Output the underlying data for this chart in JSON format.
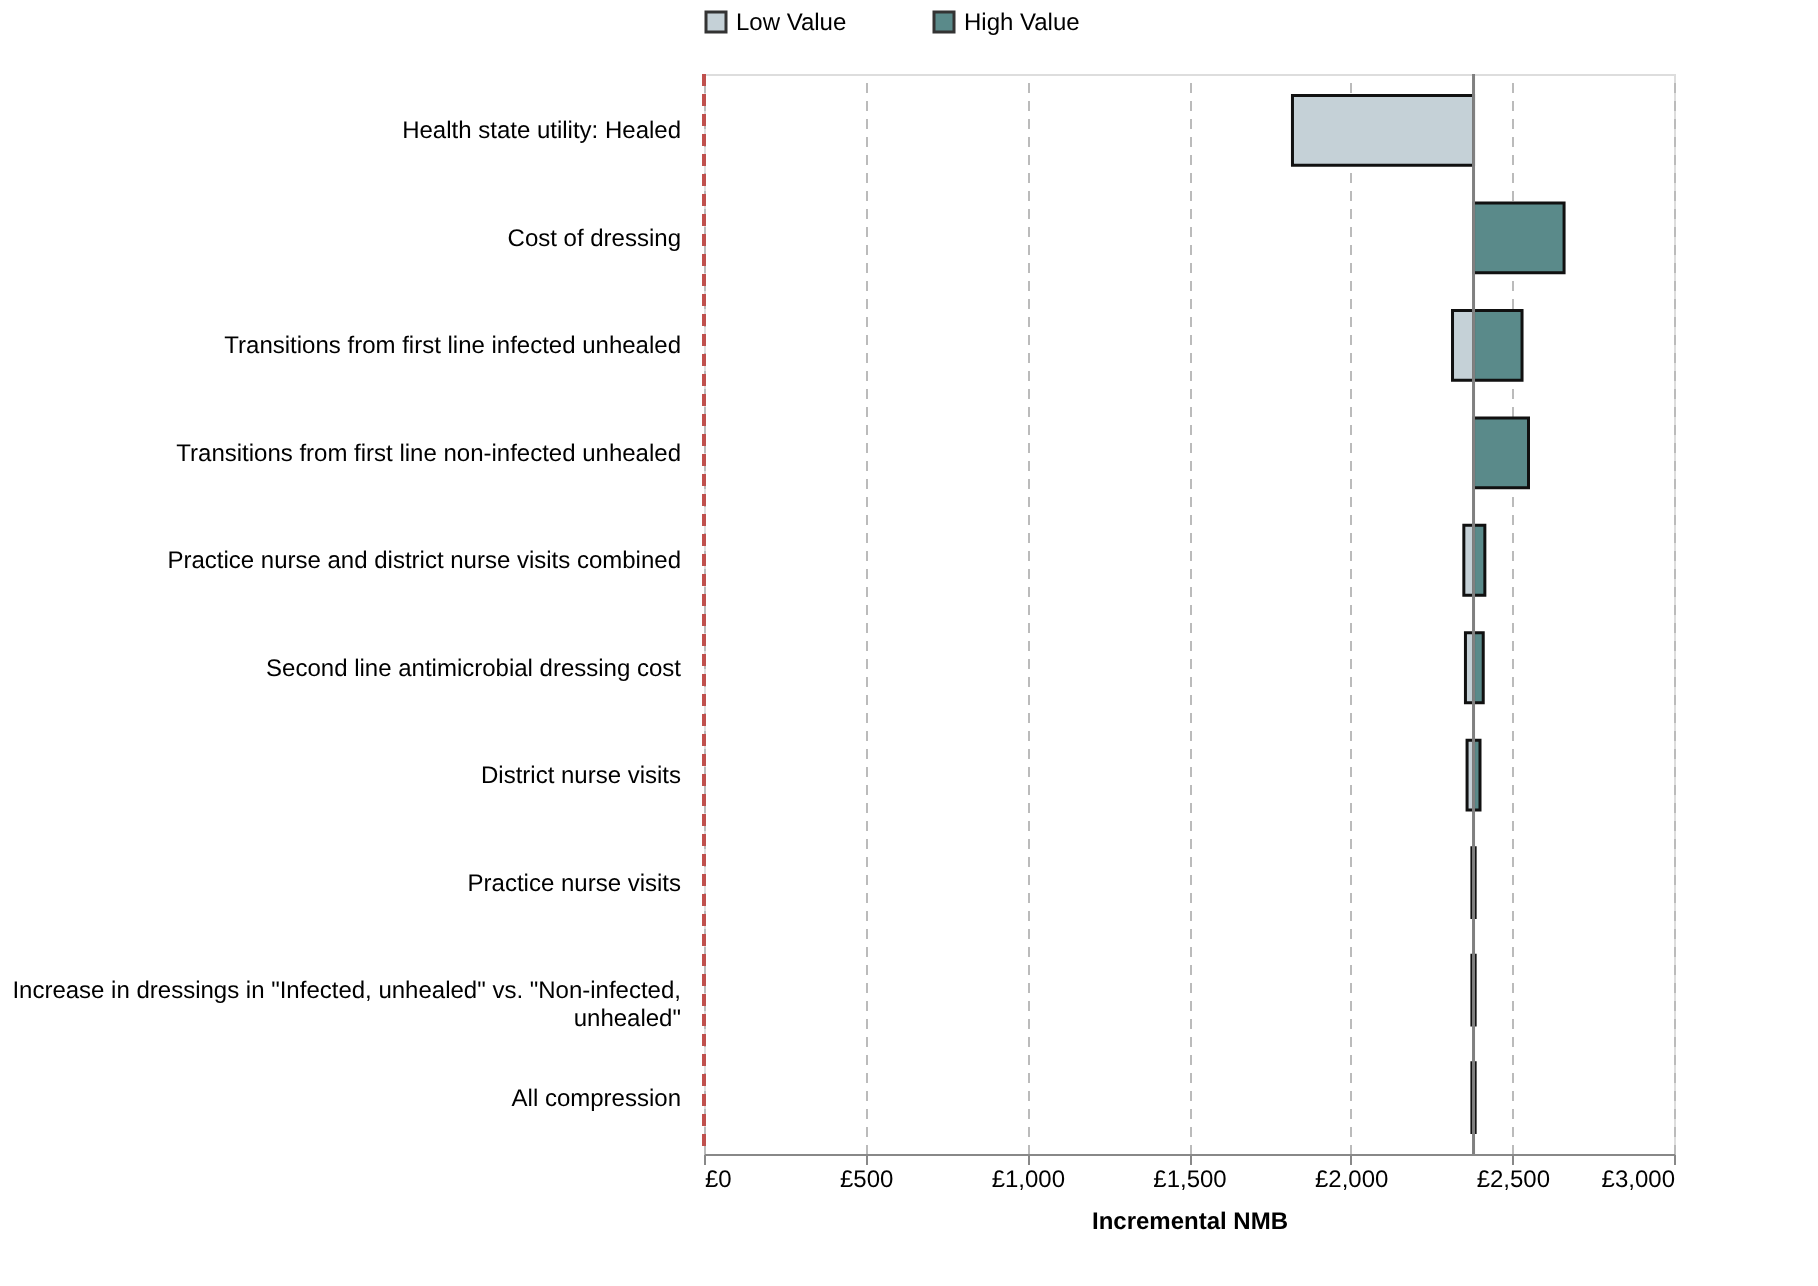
{
  "chart_data": {
    "type": "bar",
    "orientation": "horizontal",
    "xlabel": "Incremental NMB",
    "categories": [
      "Health state utility: Healed",
      "Cost of dressing",
      "Transitions from first line infected unhealed",
      "Transitions from first line non-infected unhealed",
      "Practice nurse and district nurse visits combined",
      "Second line antimicrobial dressing cost",
      "District nurse visits",
      "Practice nurse visits",
      "Increase in dressings in \"Infected, unhealed\" vs. \"Non-infected, unhealed\"",
      "All compression"
    ],
    "series": [
      {
        "name": "Low Value",
        "color": "#c5d1d7",
        "base": [
          2380,
          null,
          2380,
          null,
          2380,
          2380,
          2380,
          null,
          null,
          null
        ],
        "values": [
          -560,
          null,
          -65,
          null,
          -30,
          -25,
          -20,
          null,
          null,
          null
        ]
      },
      {
        "name": "High Value",
        "color": "#5a8a8a",
        "base": [
          null,
          2380,
          2380,
          2380,
          2380,
          2380,
          2380,
          2375,
          2375,
          2375
        ],
        "values": [
          null,
          280,
          150,
          170,
          35,
          30,
          20,
          10,
          10,
          10
        ]
      }
    ],
    "xlim": [
      0,
      3000
    ],
    "xticks": [
      {
        "value": 0,
        "label": "£0"
      },
      {
        "value": 500,
        "label": "£500"
      },
      {
        "value": 1000,
        "label": "£1,000"
      },
      {
        "value": 1500,
        "label": "£1,500"
      },
      {
        "value": 2000,
        "label": "£2,000"
      },
      {
        "value": 2500,
        "label": "£2,500"
      },
      {
        "value": 3000,
        "label": "£3,000"
      }
    ],
    "ref_lines": [
      {
        "axis": "x",
        "value": 0,
        "color": "#c0504d",
        "line_style": "dashed"
      },
      {
        "axis": "x",
        "value": 2380,
        "color": "#808080",
        "line_style": "solid"
      }
    ],
    "grid": "x",
    "legend": "top"
  }
}
